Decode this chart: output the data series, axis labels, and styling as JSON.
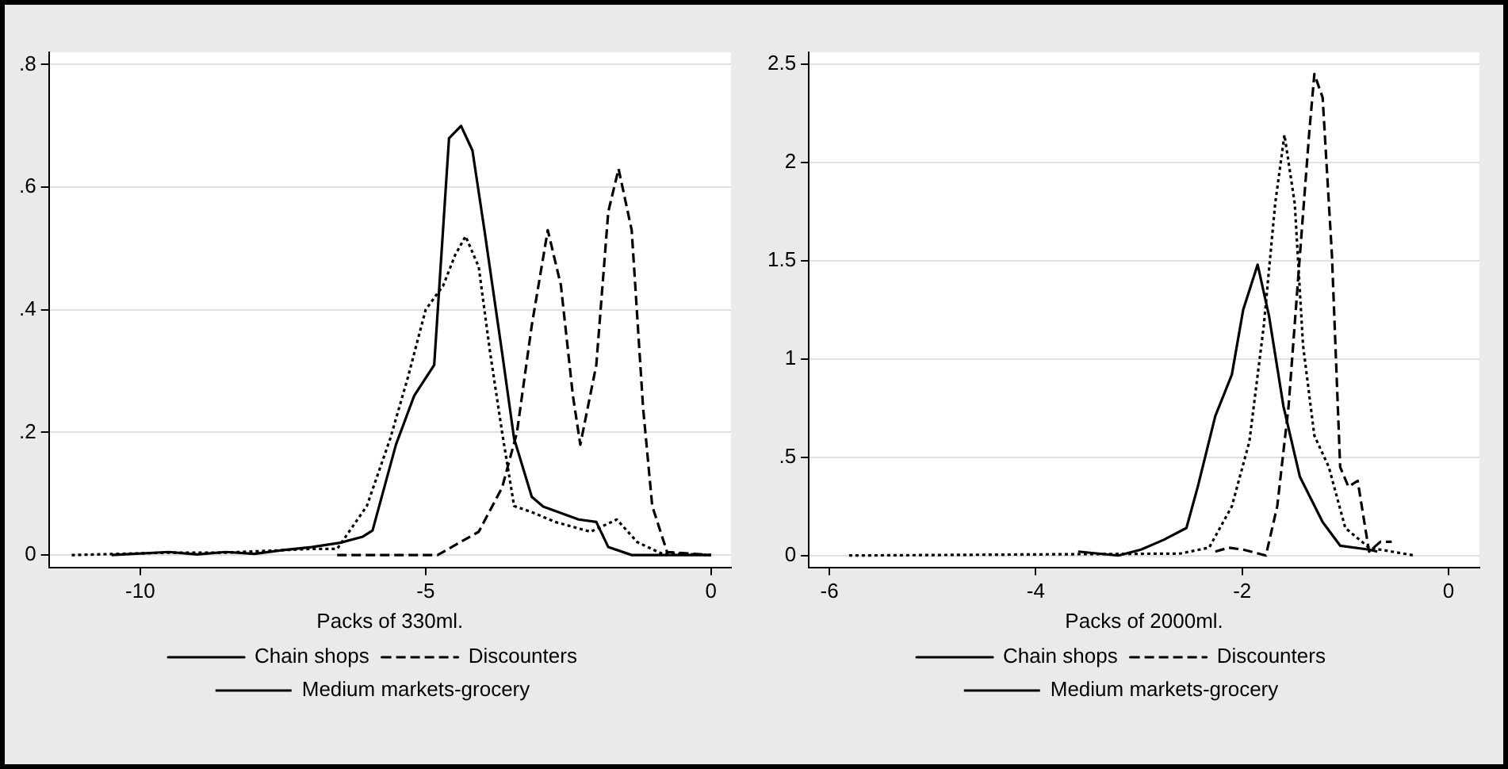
{
  "chart_data": [
    {
      "type": "line",
      "xlabel": "Packs of 330ml.",
      "xlim": [
        -11.6,
        0.35
      ],
      "xticks": [
        -10,
        -5,
        0
      ],
      "ylim": [
        -0.02,
        0.82
      ],
      "yticks": [
        0,
        {
          "value": 0.2,
          "label": ".2"
        },
        {
          "value": 0.4,
          "label": ".4"
        },
        {
          "value": 0.6,
          "label": ".6"
        },
        {
          "value": 0.8,
          "label": ".8"
        }
      ],
      "grid": "y",
      "legend": "bottom",
      "series": [
        {
          "name": "Chain shops",
          "color": "#000000",
          "line_style": "solid",
          "x": [
            -10.5,
            -9.5,
            -9,
            -8.5,
            -8,
            -7.5,
            -7,
            -6.5,
            -6.1,
            -5.93,
            -5.52,
            -5.2,
            -4.85,
            -4.59,
            -4.38,
            -4.18,
            -3.97,
            -3.66,
            -3.45,
            -3.14,
            -2.94,
            -2.32,
            -2.01,
            -1.8,
            -1.39,
            0
          ],
          "values": [
            0,
            0.005,
            0.001,
            0.005,
            0.002,
            0.008,
            0.013,
            0.02,
            0.03,
            0.04,
            0.18,
            0.26,
            0.31,
            0.68,
            0.7,
            0.66,
            0.53,
            0.33,
            0.19,
            0.095,
            0.079,
            0.058,
            0.054,
            0.013,
            0,
            0
          ]
        },
        {
          "name": "Discounters",
          "color": "#000000",
          "line_style": "dashed",
          "x": [
            -6.55,
            -4.79,
            -4.07,
            -3.66,
            -3.4,
            -3.14,
            -2.86,
            -2.63,
            -2.42,
            -2.29,
            -2.01,
            -1.8,
            -1.62,
            -1.39,
            -1.19,
            -1.03,
            -0.77,
            0
          ],
          "values": [
            0,
            0,
            0.038,
            0.11,
            0.2,
            0.375,
            0.53,
            0.44,
            0.26,
            0.18,
            0.31,
            0.56,
            0.63,
            0.53,
            0.24,
            0.08,
            0.005,
            0
          ]
        },
        {
          "name": "Medium markets-grocery",
          "color": "#000000",
          "line_style": "dotted",
          "x": [
            -11.2,
            -9.5,
            -8.5,
            -7.5,
            -7,
            -6.55,
            -6.03,
            -5.62,
            -5.31,
            -5,
            -4.69,
            -4.48,
            -4.3,
            -4.07,
            -3.87,
            -3.66,
            -3.45,
            -3.14,
            -2.73,
            -2.11,
            -1.65,
            -1.29,
            -0.88,
            0
          ],
          "values": [
            0,
            0.004,
            0.004,
            0.008,
            0.01,
            0.01,
            0.08,
            0.19,
            0.29,
            0.4,
            0.44,
            0.49,
            0.52,
            0.47,
            0.33,
            0.2,
            0.08,
            0.07,
            0.054,
            0.038,
            0.058,
            0.021,
            0.003,
            0
          ]
        }
      ]
    },
    {
      "type": "line",
      "xlabel": "Packs of 2000ml.",
      "xlim": [
        -6.2,
        0.3
      ],
      "xticks": [
        -6,
        -4,
        -2,
        0
      ],
      "ylim": [
        -0.06,
        2.56
      ],
      "yticks": [
        0,
        {
          "value": 0.5,
          "label": ".5"
        },
        1,
        1.5,
        2,
        2.5
      ],
      "grid": "y",
      "legend": "bottom",
      "series": [
        {
          "name": "Chain shops",
          "color": "#000000",
          "line_style": "solid",
          "x": [
            -3.59,
            -3.2,
            -2.98,
            -2.76,
            -2.54,
            -2.43,
            -2.26,
            -2.1,
            -1.99,
            -1.85,
            -1.74,
            -1.6,
            -1.44,
            -1.22,
            -1.05,
            -0.77,
            -0.69
          ],
          "values": [
            0.02,
            0,
            0.03,
            0.08,
            0.14,
            0.35,
            0.71,
            0.92,
            1.25,
            1.48,
            1.22,
            0.76,
            0.4,
            0.17,
            0.05,
            0.03,
            0.02
          ]
        },
        {
          "name": "Discounters",
          "color": "#000000",
          "line_style": "dashed",
          "x": [
            -2.26,
            -2.13,
            -1.99,
            -1.77,
            -1.66,
            -1.55,
            -1.44,
            -1.35,
            -1.3,
            -1.22,
            -1.13,
            -1.05,
            -0.97,
            -0.88,
            -0.77,
            -0.66,
            -0.55
          ],
          "values": [
            0.02,
            0.04,
            0.03,
            0,
            0.25,
            0.76,
            1.53,
            2.15,
            2.45,
            2.33,
            1.53,
            0.45,
            0.35,
            0.38,
            0.02,
            0.07,
            0.07
          ]
        },
        {
          "name": "Medium markets-grocery",
          "color": "#000000",
          "line_style": "dotted",
          "x": [
            -5.81,
            -2.6,
            -2.32,
            -2.1,
            -1.93,
            -1.79,
            -1.68,
            -1.59,
            -1.49,
            -1.41,
            -1.3,
            -1.16,
            -1,
            -0.77,
            -0.55,
            -0.33
          ],
          "values": [
            0,
            0.01,
            0.04,
            0.25,
            0.58,
            1.17,
            1.79,
            2.14,
            1.79,
            1.07,
            0.61,
            0.45,
            0.14,
            0.04,
            0.02,
            0
          ]
        }
      ]
    }
  ]
}
